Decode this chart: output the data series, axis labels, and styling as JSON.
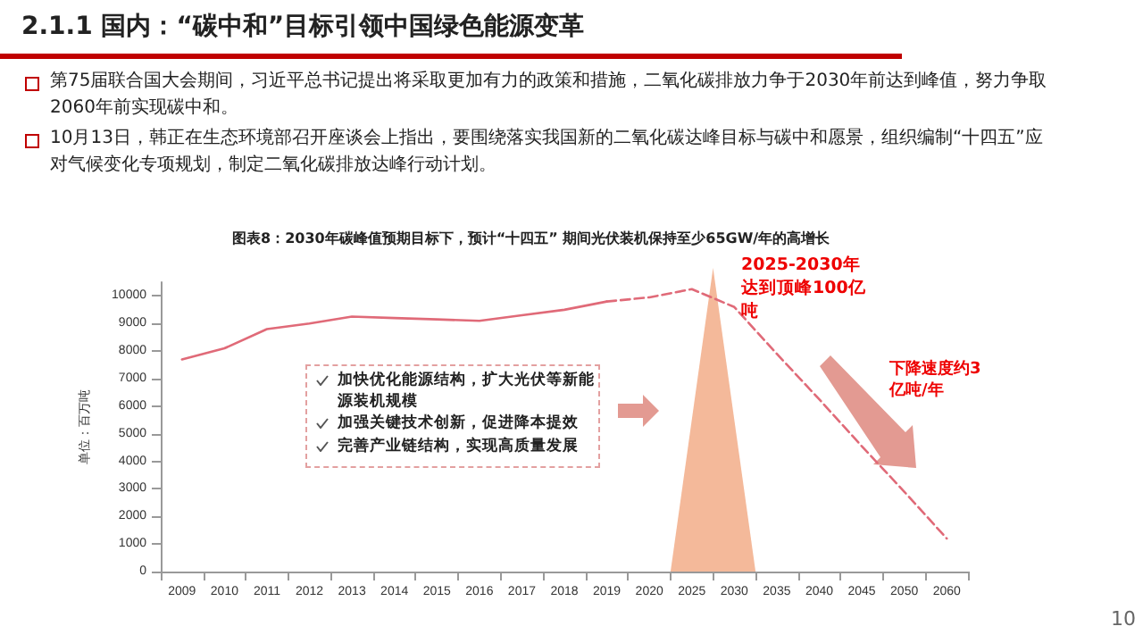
{
  "chart_data": {
    "type": "line",
    "title": "2.1.1 国内：“碳中和”目标引领中国绿色能源变革",
    "subtitle": "图表8：2030年碳峰值预期目标下，预计“十四五” 期间光伏装机保持至少65GW/年的高增长",
    "ylabel": "单位：百万吨",
    "categories": [
      "2009",
      "2010",
      "2011",
      "2012",
      "2013",
      "2014",
      "2015",
      "2016",
      "2017",
      "2018",
      "2019",
      "2020",
      "2025",
      "2030",
      "2035",
      "2040",
      "2045",
      "2050",
      "2060"
    ],
    "series": [
      {
        "color": "#e06a78",
        "line_style": "solid",
        "values": [
          7700,
          8100,
          8800,
          9000,
          9250,
          9200,
          9150,
          9100,
          9300,
          9500,
          9800,
          null,
          null,
          null,
          null,
          null,
          null,
          null,
          null
        ]
      },
      {
        "color": "#e06a78",
        "line_style": "dashed",
        "values": [
          null,
          null,
          null,
          null,
          null,
          null,
          null,
          null,
          null,
          null,
          9800,
          9950,
          10250,
          9600,
          7900,
          6250,
          4550,
          2900,
          1200
        ]
      }
    ],
    "ylim": [
      0,
      10500
    ],
    "yticks": [
      0,
      1000,
      2000,
      3000,
      4000,
      5000,
      6000,
      7000,
      8000,
      9000,
      10000
    ],
    "grid": false,
    "marker": "none",
    "annotations": [
      "第75届联合国大会期间，习近平总书记提出将采取更加有力的政策和措施，二氧化碳排放力争于2030年前达到峰值，努力争取2060年前实现碳中和。",
      "10月13日，韩正在生态环境部召开座谈会上指出，要围绕落实我国新的二氧化碳达峰目标与碳中和愿景，组织编制“十四五”应对气候变化专项规划，制定二氧化碳排放达峰行动计划。",
      "加快优化能源结构，扩大光伏等新能源装机规模",
      "加强关键技术创新，促进降本提效",
      "完善产业链结构，实现高质量发展",
      "2025-2030年达到顶峰100亿吨",
      "下降速度约3亿吨/年",
      "10"
    ]
  }
}
